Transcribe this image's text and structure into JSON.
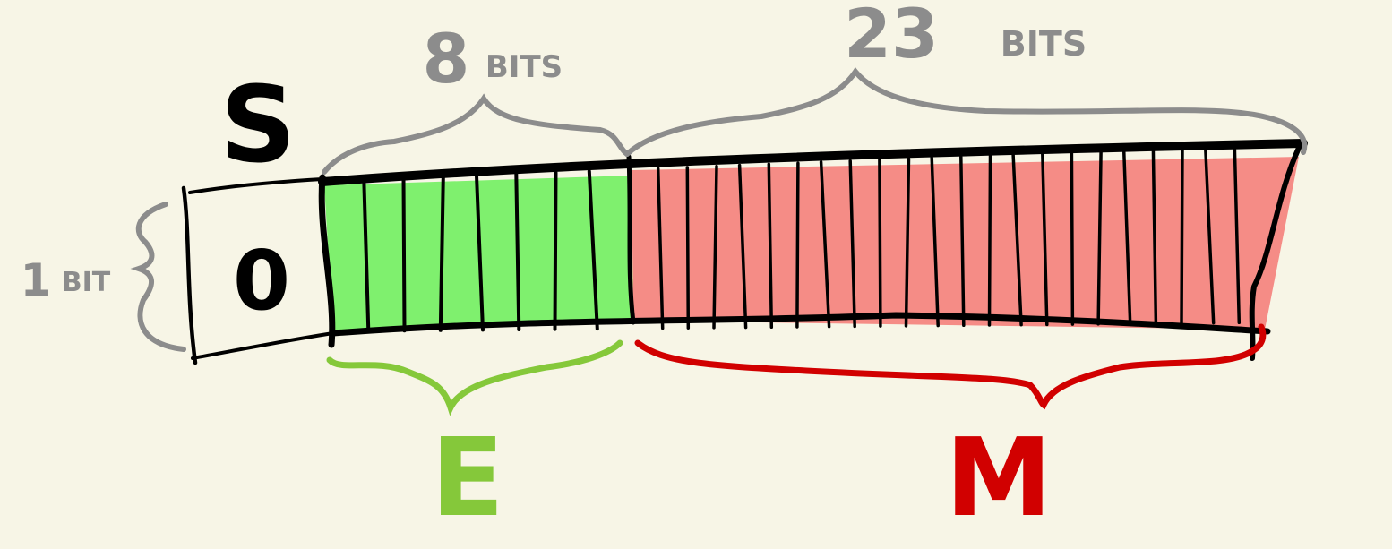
{
  "diagram": {
    "sign": {
      "letter": "S",
      "value": "0",
      "size_number": "1",
      "size_unit": "BIT",
      "bit_count": 1
    },
    "exponent": {
      "letter": "E",
      "size_number": "8",
      "size_unit": "BITS",
      "bit_count": 8
    },
    "mantissa": {
      "letter": "M",
      "size_number": "23",
      "size_unit": "BITS",
      "bit_count": 23
    },
    "colors": {
      "background": "#f7f5e6",
      "outline": "#000000",
      "exponent_fill": "#7ff06e",
      "exponent_brace": "#85c83a",
      "mantissa_fill": "#f58c86",
      "mantissa_brace": "#d10000",
      "annotation_gray": "#8c8c8c"
    }
  }
}
